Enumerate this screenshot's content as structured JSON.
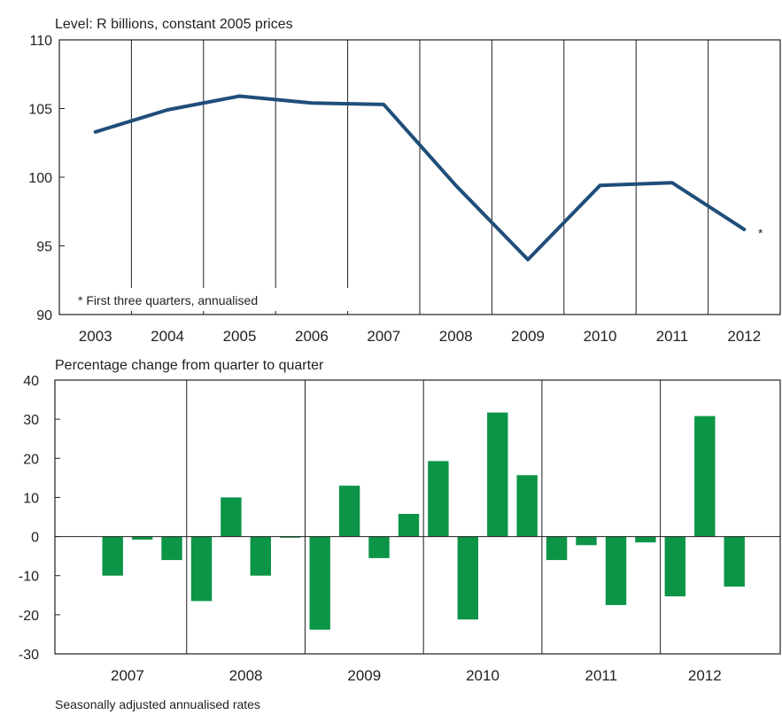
{
  "colors": {
    "line": "#1f4e79",
    "bar": "#0c9447",
    "axis": "#231f20"
  },
  "chart_data": [
    {
      "type": "line",
      "title": "Level: R billions, constant 2005 prices",
      "categories": [
        "2003",
        "2004",
        "2005",
        "2006",
        "2007",
        "2008",
        "2009",
        "2010",
        "2011",
        "2012"
      ],
      "values": [
        103.3,
        104.9,
        105.9,
        105.4,
        105.3,
        99.4,
        94.0,
        99.4,
        99.6,
        96.2
      ],
      "last_point_marker": "*",
      "ylim": [
        90,
        110
      ],
      "yticks": [
        "90",
        "95",
        "100",
        "105",
        "110"
      ],
      "annotation": "* First three quarters, annualised",
      "grid": "vertical"
    },
    {
      "type": "bar",
      "title": "Percentage change from quarter to quarter",
      "groups": [
        "2007",
        "2008",
        "2009",
        "2010",
        "2011",
        "2012"
      ],
      "values": [
        -10.0,
        -0.8,
        -6.0,
        -16.5,
        10.0,
        -10.0,
        -0.3,
        -23.8,
        13.0,
        -5.5,
        5.8,
        19.3,
        -21.2,
        31.7,
        15.7,
        -6.0,
        -2.2,
        -17.5,
        -1.5,
        -15.3,
        30.8,
        -12.8
      ],
      "bars_per_group": [
        3,
        4,
        4,
        4,
        4,
        3
      ],
      "ylim": [
        -30,
        40
      ],
      "yticks": [
        "-30",
        "-20",
        "-10",
        "0",
        "10",
        "20",
        "30",
        "40"
      ],
      "footnote": "Seasonally adjusted annualised rates",
      "grid": "vertical"
    }
  ]
}
